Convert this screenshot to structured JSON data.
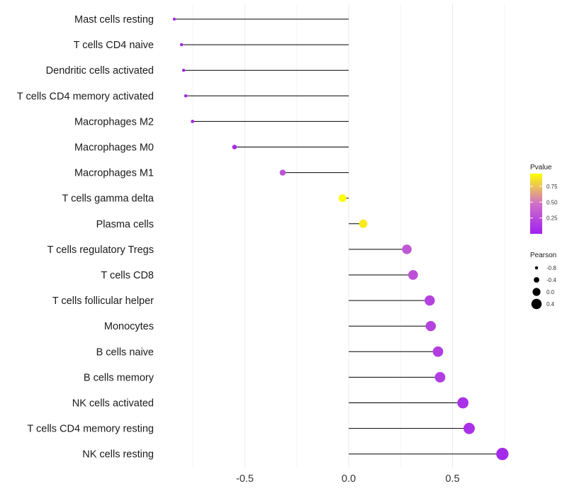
{
  "chart_data": {
    "type": "lollipop",
    "title": "",
    "xlabel": "",
    "ylabel": "",
    "xlim": [
      -0.85,
      0.76
    ],
    "xticks": [
      -0.5,
      0.0,
      0.5
    ],
    "xtick_labels": [
      "-0.5",
      "0.0",
      "0.5"
    ],
    "grid": true,
    "categories": [
      {
        "name": "Mast cells resting",
        "pearson": -0.84,
        "pvalue": 0.02
      },
      {
        "name": "T cells CD4 naive",
        "pearson": -0.805,
        "pvalue": 0.03
      },
      {
        "name": "Dendritic cells activated",
        "pearson": -0.795,
        "pvalue": 0.04
      },
      {
        "name": "T cells CD4 memory activated",
        "pearson": -0.785,
        "pvalue": 0.04
      },
      {
        "name": "Macrophages M2",
        "pearson": -0.752,
        "pvalue": 0.05
      },
      {
        "name": "Macrophages M0",
        "pearson": -0.55,
        "pvalue": 0.05
      },
      {
        "name": "Macrophages M1",
        "pearson": -0.318,
        "pvalue": 0.3
      },
      {
        "name": "T cells gamma delta",
        "pearson": -0.03,
        "pvalue": 0.95
      },
      {
        "name": "Plasma cells",
        "pearson": 0.07,
        "pvalue": 0.88
      },
      {
        "name": "T cells regulatory  Tregs ",
        "pearson": 0.28,
        "pvalue": 0.32
      },
      {
        "name": "T cells CD8",
        "pearson": 0.31,
        "pvalue": 0.28
      },
      {
        "name": "T cells follicular helper",
        "pearson": 0.39,
        "pvalue": 0.2
      },
      {
        "name": "Monocytes",
        "pearson": 0.395,
        "pvalue": 0.2
      },
      {
        "name": "B cells naive",
        "pearson": 0.43,
        "pvalue": 0.18
      },
      {
        "name": "B cells memory",
        "pearson": 0.44,
        "pvalue": 0.17
      },
      {
        "name": "NK cells activated",
        "pearson": 0.55,
        "pvalue": 0.1
      },
      {
        "name": "T cells CD4 memory resting",
        "pearson": 0.58,
        "pvalue": 0.1
      },
      {
        "name": "NK cells resting",
        "pearson": 0.74,
        "pvalue": 0.06
      }
    ],
    "legend": {
      "pvalue": {
        "title": "Pvalue",
        "ticks": [
          0.75,
          0.5,
          0.25
        ],
        "tick_labels": [
          "0.75",
          "0.50",
          "0.25"
        ],
        "range": [
          0.0,
          0.95
        ],
        "colors": {
          "low": "#a020f0",
          "mid": "#d070c8",
          "high": "#ffff00"
        }
      },
      "pearson": {
        "title": "Pearson",
        "values": [
          -0.8,
          -0.4,
          0.0,
          0.4
        ],
        "labels": [
          "-0.8",
          "-0.4",
          "0.0",
          "0.4"
        ]
      },
      "placement": "right"
    }
  }
}
